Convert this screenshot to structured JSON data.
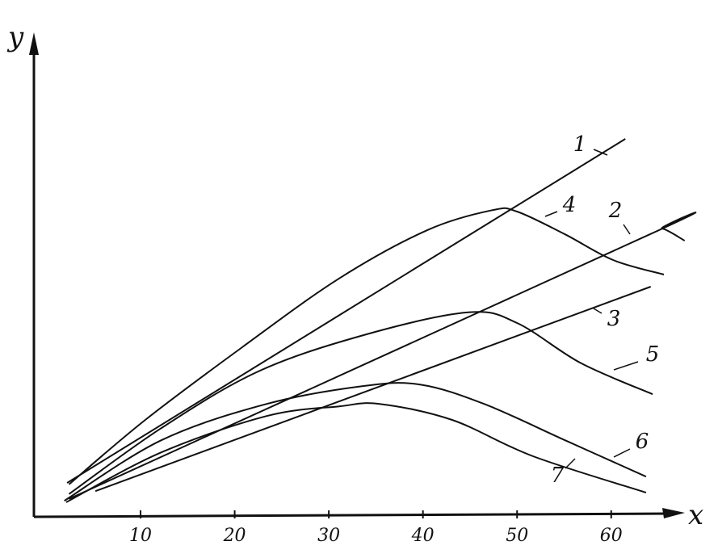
{
  "chart_data": {
    "type": "line",
    "x_label": "x",
    "y_label": "y",
    "xlim": [
      -1.5,
      68
    ],
    "ylim": [
      0,
      100
    ],
    "xticks": [
      10,
      20,
      30,
      40,
      50,
      60
    ],
    "color": "#111111",
    "series": [
      {
        "name": "1",
        "x": [
          2.2,
          61.5
        ],
        "values": [
          7,
          78
        ]
      },
      {
        "name": "2",
        "x": [
          2.4,
          64.1,
          65.4,
          67.8
        ],
        "values": [
          3.7,
          58.3,
          59.5,
          57
        ]
      },
      {
        "name": "3",
        "x": [
          5.2,
          64.2
        ],
        "values": [
          5.3,
          47.5
        ]
      },
      {
        "name": "4",
        "x": [
          2.4,
          10.5,
          20.8,
          31.1,
          40.5,
          47.4,
          50,
          55.1,
          60.2,
          65.6
        ],
        "values": [
          6.7,
          20,
          35,
          49.2,
          59.2,
          63.3,
          63,
          58.3,
          53,
          50
        ]
      },
      {
        "name": "5",
        "x": [
          2.4,
          12.2,
          22.5,
          33.7,
          44.8,
          50,
          56.8,
          64.4
        ],
        "values": [
          4.7,
          18.3,
          30,
          37.5,
          42.2,
          40,
          31.7,
          25.3
        ]
      },
      {
        "name": "6",
        "x": [
          1.9,
          12.2,
          23.4,
          33.7,
          39.7,
          46.5,
          55.1,
          63.7
        ],
        "values": [
          3.3,
          15.8,
          23.3,
          27,
          27.3,
          23.3,
          15.8,
          8.3
        ]
      },
      {
        "name": "7",
        "x": [
          2.1,
          12.2,
          23.4,
          31.1,
          35.4,
          43.1,
          51.7,
          63.7
        ],
        "values": [
          3,
          13.3,
          20.8,
          22.8,
          23.3,
          20,
          12.5,
          5
        ]
      }
    ]
  }
}
